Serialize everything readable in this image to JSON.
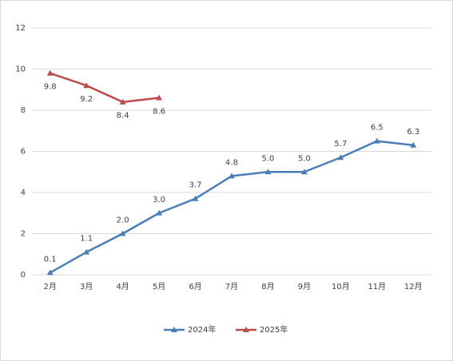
{
  "chart_data": {
    "type": "line",
    "categories": [
      "2月",
      "3月",
      "4月",
      "5月",
      "6月",
      "7月",
      "8月",
      "9月",
      "10月",
      "11月",
      "12月"
    ],
    "series": [
      {
        "name": "2024年",
        "color": "#4a7ebb",
        "values": [
          0.1,
          1.1,
          2.0,
          3.0,
          3.7,
          4.8,
          5.0,
          5.0,
          5.7,
          6.5,
          6.3
        ],
        "value_labels": [
          "0.1",
          "1.1",
          "2.0",
          "3.0",
          "3.7",
          "4.8",
          "5.0",
          "5.0",
          "5.7",
          "6.5",
          "6.3"
        ]
      },
      {
        "name": "2025年",
        "color": "#be4b48",
        "values": [
          9.8,
          9.2,
          8.4,
          8.6,
          null,
          null,
          null,
          null,
          null,
          null,
          null
        ],
        "value_labels": [
          "9.8",
          "9.2",
          "8.4",
          "8.6",
          null,
          null,
          null,
          null,
          null,
          null,
          null
        ]
      }
    ],
    "ylim": [
      0,
      12
    ],
    "yticks": [
      0,
      2,
      4,
      6,
      8,
      10,
      12
    ],
    "grid": true,
    "legend": "bottom"
  }
}
